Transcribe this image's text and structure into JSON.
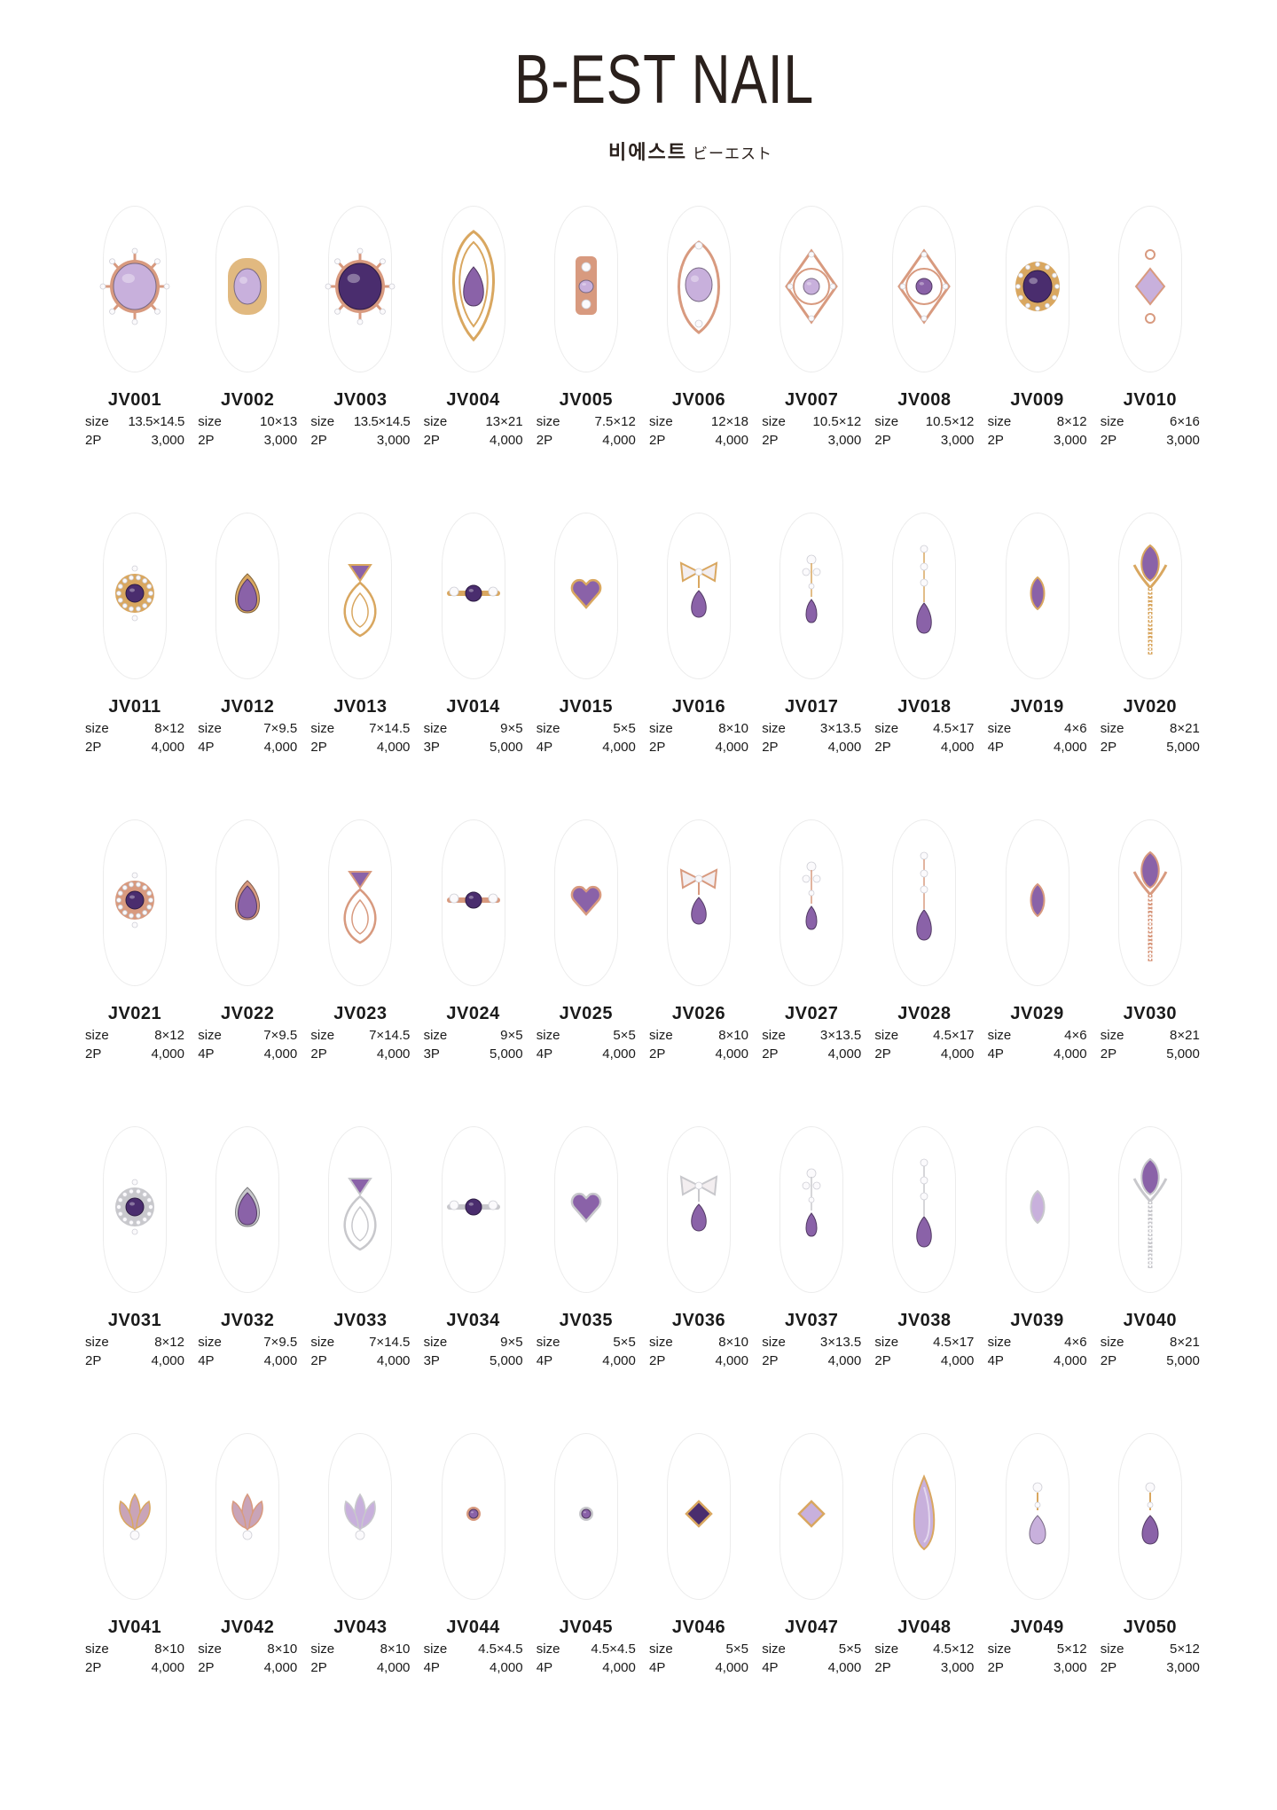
{
  "brand": {
    "name": "B-EST NAIL",
    "subtitle_korean": "비에스트",
    "subtitle_japanese": "ビーエスト"
  },
  "labels": {
    "size": "size"
  },
  "colors": {
    "gold": "#d9a760",
    "rose_gold": "#d89a7f",
    "silver": "#c8c8cc",
    "amethyst_dark": "#4a2d6e",
    "amethyst": "#8a62a8",
    "lavender": "#c8b0dc",
    "light_pink_purple": "#c9a4b8"
  },
  "products": [
    {
      "code": "JV001",
      "size": "13.5×14.5",
      "qty": "2P",
      "price": "3,000",
      "metal": "rose_gold",
      "stone": "lavender",
      "shape": "oval-star"
    },
    {
      "code": "JV002",
      "size": "10×13",
      "qty": "2P",
      "price": "3,000",
      "metal": "gold",
      "stone": "lavender",
      "shape": "oval-baguette"
    },
    {
      "code": "JV003",
      "size": "13.5×14.5",
      "qty": "2P",
      "price": "3,000",
      "metal": "rose_gold",
      "stone": "amethyst_dark",
      "shape": "oval-star"
    },
    {
      "code": "JV004",
      "size": "13×21",
      "qty": "2P",
      "price": "4,000",
      "metal": "gold",
      "stone": "amethyst",
      "shape": "ornate-drop"
    },
    {
      "code": "JV005",
      "size": "7.5×12",
      "qty": "2P",
      "price": "4,000",
      "metal": "rose_gold",
      "stone": "lavender",
      "shape": "bar"
    },
    {
      "code": "JV006",
      "size": "12×18",
      "qty": "2P",
      "price": "4,000",
      "metal": "rose_gold",
      "stone": "lavender",
      "shape": "ornate-oval"
    },
    {
      "code": "JV007",
      "size": "10.5×12",
      "qty": "2P",
      "price": "3,000",
      "metal": "rose_gold",
      "stone": "lavender",
      "shape": "filigree"
    },
    {
      "code": "JV008",
      "size": "10.5×12",
      "qty": "2P",
      "price": "3,000",
      "metal": "rose_gold",
      "stone": "amethyst",
      "shape": "filigree"
    },
    {
      "code": "JV009",
      "size": "8×12",
      "qty": "2P",
      "price": "3,000",
      "metal": "gold",
      "stone": "amethyst_dark",
      "shape": "oval-halo"
    },
    {
      "code": "JV010",
      "size": "6×16",
      "qty": "2P",
      "price": "3,000",
      "metal": "rose_gold",
      "stone": "lavender",
      "shape": "link"
    },
    {
      "code": "JV011",
      "size": "8×12",
      "qty": "2P",
      "price": "4,000",
      "metal": "gold",
      "stone": "amethyst_dark",
      "shape": "round-halo"
    },
    {
      "code": "JV012",
      "size": "7×9.5",
      "qty": "4P",
      "price": "4,000",
      "metal": "gold",
      "stone": "amethyst",
      "shape": "pear"
    },
    {
      "code": "JV013",
      "size": "7×14.5",
      "qty": "2P",
      "price": "4,000",
      "metal": "gold",
      "stone": "amethyst",
      "shape": "trillion-loop"
    },
    {
      "code": "JV014",
      "size": "9×5",
      "qty": "3P",
      "price": "5,000",
      "metal": "gold",
      "stone": "amethyst_dark",
      "shape": "three-stone"
    },
    {
      "code": "JV015",
      "size": "5×5",
      "qty": "4P",
      "price": "4,000",
      "metal": "gold",
      "stone": "amethyst",
      "shape": "heart"
    },
    {
      "code": "JV016",
      "size": "8×10",
      "qty": "2P",
      "price": "4,000",
      "metal": "gold",
      "stone": "amethyst",
      "shape": "bow-drop"
    },
    {
      "code": "JV017",
      "size": "3×13.5",
      "qty": "2P",
      "price": "4,000",
      "metal": "gold",
      "stone": "amethyst",
      "shape": "dangle"
    },
    {
      "code": "JV018",
      "size": "4.5×17",
      "qty": "2P",
      "price": "4,000",
      "metal": "gold",
      "stone": "amethyst",
      "shape": "long-dangle"
    },
    {
      "code": "JV019",
      "size": "4×6",
      "qty": "4P",
      "price": "4,000",
      "metal": "gold",
      "stone": "amethyst",
      "shape": "marquise"
    },
    {
      "code": "JV020",
      "size": "8×21",
      "qty": "2P",
      "price": "5,000",
      "metal": "gold",
      "stone": "amethyst",
      "shape": "tulip"
    },
    {
      "code": "JV021",
      "size": "8×12",
      "qty": "2P",
      "price": "4,000",
      "metal": "rose_gold",
      "stone": "amethyst_dark",
      "shape": "round-halo"
    },
    {
      "code": "JV022",
      "size": "7×9.5",
      "qty": "4P",
      "price": "4,000",
      "metal": "rose_gold",
      "stone": "amethyst",
      "shape": "pear"
    },
    {
      "code": "JV023",
      "size": "7×14.5",
      "qty": "2P",
      "price": "4,000",
      "metal": "rose_gold",
      "stone": "amethyst",
      "shape": "trillion-loop"
    },
    {
      "code": "JV024",
      "size": "9×5",
      "qty": "3P",
      "price": "5,000",
      "metal": "rose_gold",
      "stone": "amethyst_dark",
      "shape": "three-stone"
    },
    {
      "code": "JV025",
      "size": "5×5",
      "qty": "4P",
      "price": "4,000",
      "metal": "rose_gold",
      "stone": "amethyst",
      "shape": "heart"
    },
    {
      "code": "JV026",
      "size": "8×10",
      "qty": "2P",
      "price": "4,000",
      "metal": "rose_gold",
      "stone": "amethyst",
      "shape": "bow-drop"
    },
    {
      "code": "JV027",
      "size": "3×13.5",
      "qty": "2P",
      "price": "4,000",
      "metal": "rose_gold",
      "stone": "amethyst",
      "shape": "dangle"
    },
    {
      "code": "JV028",
      "size": "4.5×17",
      "qty": "2P",
      "price": "4,000",
      "metal": "rose_gold",
      "stone": "amethyst",
      "shape": "long-dangle"
    },
    {
      "code": "JV029",
      "size": "4×6",
      "qty": "4P",
      "price": "4,000",
      "metal": "rose_gold",
      "stone": "amethyst",
      "shape": "marquise"
    },
    {
      "code": "JV030",
      "size": "8×21",
      "qty": "2P",
      "price": "5,000",
      "metal": "rose_gold",
      "stone": "amethyst",
      "shape": "tulip"
    },
    {
      "code": "JV031",
      "size": "8×12",
      "qty": "2P",
      "price": "4,000",
      "metal": "silver",
      "stone": "amethyst_dark",
      "shape": "round-halo"
    },
    {
      "code": "JV032",
      "size": "7×9.5",
      "qty": "4P",
      "price": "4,000",
      "metal": "silver",
      "stone": "amethyst",
      "shape": "pear"
    },
    {
      "code": "JV033",
      "size": "7×14.5",
      "qty": "2P",
      "price": "4,000",
      "metal": "silver",
      "stone": "amethyst",
      "shape": "trillion-loop"
    },
    {
      "code": "JV034",
      "size": "9×5",
      "qty": "3P",
      "price": "5,000",
      "metal": "silver",
      "stone": "amethyst_dark",
      "shape": "three-stone"
    },
    {
      "code": "JV035",
      "size": "5×5",
      "qty": "4P",
      "price": "4,000",
      "metal": "silver",
      "stone": "amethyst",
      "shape": "heart"
    },
    {
      "code": "JV036",
      "size": "8×10",
      "qty": "2P",
      "price": "4,000",
      "metal": "silver",
      "stone": "amethyst",
      "shape": "bow-drop"
    },
    {
      "code": "JV037",
      "size": "3×13.5",
      "qty": "2P",
      "price": "4,000",
      "metal": "silver",
      "stone": "amethyst",
      "shape": "dangle"
    },
    {
      "code": "JV038",
      "size": "4.5×17",
      "qty": "2P",
      "price": "4,000",
      "metal": "silver",
      "stone": "amethyst",
      "shape": "long-dangle"
    },
    {
      "code": "JV039",
      "size": "4×6",
      "qty": "4P",
      "price": "4,000",
      "metal": "silver",
      "stone": "lavender",
      "shape": "marquise"
    },
    {
      "code": "JV040",
      "size": "8×21",
      "qty": "2P",
      "price": "5,000",
      "metal": "silver",
      "stone": "amethyst",
      "shape": "tulip"
    },
    {
      "code": "JV041",
      "size": "8×10",
      "qty": "2P",
      "price": "4,000",
      "metal": "gold",
      "stone": "light_pink_purple",
      "shape": "leaves"
    },
    {
      "code": "JV042",
      "size": "8×10",
      "qty": "2P",
      "price": "4,000",
      "metal": "rose_gold",
      "stone": "light_pink_purple",
      "shape": "leaves"
    },
    {
      "code": "JV043",
      "size": "8×10",
      "qty": "2P",
      "price": "4,000",
      "metal": "silver",
      "stone": "lavender",
      "shape": "leaves"
    },
    {
      "code": "JV044",
      "size": "4.5×4.5",
      "qty": "4P",
      "price": "4,000",
      "metal": "rose_gold",
      "stone": "amethyst",
      "shape": "solitaire"
    },
    {
      "code": "JV045",
      "size": "4.5×4.5",
      "qty": "4P",
      "price": "4,000",
      "metal": "silver",
      "stone": "amethyst",
      "shape": "solitaire"
    },
    {
      "code": "JV046",
      "size": "5×5",
      "qty": "4P",
      "price": "4,000",
      "metal": "gold",
      "stone": "amethyst_dark",
      "shape": "square"
    },
    {
      "code": "JV047",
      "size": "5×5",
      "qty": "4P",
      "price": "4,000",
      "metal": "gold",
      "stone": "lavender",
      "shape": "square"
    },
    {
      "code": "JV048",
      "size": "4.5×12",
      "qty": "2P",
      "price": "3,000",
      "metal": "gold",
      "stone": "lavender",
      "shape": "teardrop-long"
    },
    {
      "code": "JV049",
      "size": "5×12",
      "qty": "2P",
      "price": "3,000",
      "metal": "gold",
      "stone": "lavender",
      "shape": "drop-pendant"
    },
    {
      "code": "JV050",
      "size": "5×12",
      "qty": "2P",
      "price": "3,000",
      "metal": "gold",
      "stone": "amethyst",
      "shape": "drop-pendant"
    }
  ]
}
